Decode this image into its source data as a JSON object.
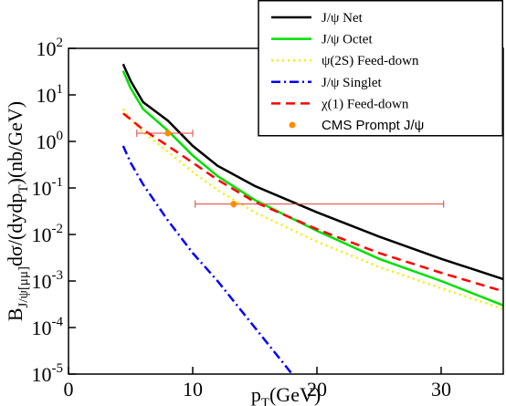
{
  "chart_data": {
    "type": "line",
    "xlabel_parts": [
      {
        "text": "p"
      },
      {
        "text": "T",
        "sub": true
      },
      {
        "text": "(GeV)"
      }
    ],
    "ylabel_parts": [
      {
        "text": "B"
      },
      {
        "text": "J/ψ[μμ]",
        "sub": true
      },
      {
        "text": "dσ/(dydp"
      },
      {
        "text": "T",
        "sub": true
      },
      {
        "text": ")(nb/GeV)"
      }
    ],
    "xlim": [
      0,
      35
    ],
    "xticks": [
      0,
      10,
      20,
      30
    ],
    "ylim": [
      1e-05,
      100
    ],
    "log_y": true,
    "yticks": [
      {
        "value": 1e-05,
        "label": "10",
        "exponent": "-5"
      },
      {
        "value": 0.0001,
        "label": "10",
        "exponent": "-4"
      },
      {
        "value": 0.001,
        "label": "10",
        "exponent": "-3"
      },
      {
        "value": 0.01,
        "label": "10",
        "exponent": "-2"
      },
      {
        "value": 0.1,
        "label": "10",
        "exponent": "-1"
      },
      {
        "value": 1,
        "label": "10",
        "exponent": "0"
      },
      {
        "value": 10,
        "label": "10",
        "exponent": "1"
      },
      {
        "value": 100,
        "label": "10",
        "exponent": "2"
      }
    ],
    "legend": "upper right",
    "series": [
      {
        "name": "J/ψ Net",
        "color": "#000000",
        "dash": "solid",
        "x": [
          4.4,
          5,
          6,
          8,
          10,
          12,
          15,
          20,
          25,
          30,
          35
        ],
        "values": [
          46,
          20,
          7,
          2.8,
          0.8,
          0.3,
          0.11,
          0.03,
          0.009,
          0.003,
          0.0011
        ]
      },
      {
        "name": "J/ψ Octet",
        "color": "#00e000",
        "dash": "solid",
        "x": [
          4.4,
          5,
          6,
          8,
          10,
          12,
          15,
          20,
          25,
          30,
          35
        ],
        "values": [
          33,
          14,
          5,
          1.7,
          0.5,
          0.18,
          0.055,
          0.012,
          0.003,
          0.001,
          0.0003
        ]
      },
      {
        "name": "ψ(2S) Feed-down",
        "color": "#f0f000",
        "dash": "dotted",
        "x": [
          4.4,
          5,
          6,
          8,
          10,
          12,
          15,
          20,
          25,
          30,
          35
        ],
        "values": [
          5,
          3,
          1.6,
          0.6,
          0.22,
          0.09,
          0.03,
          0.007,
          0.002,
          0.0007,
          0.00025
        ]
      },
      {
        "name": "J/ψ Singlet",
        "color": "#0000ff",
        "dash": "dashdot",
        "x": [
          4.4,
          5,
          6,
          8,
          10,
          12,
          15,
          18
        ],
        "values": [
          0.8,
          0.35,
          0.12,
          0.02,
          0.004,
          0.001,
          0.0001,
          1e-05
        ]
      },
      {
        "name": "χ(1) Feed-down",
        "color": "#ff0000",
        "dash": "dashed",
        "x": [
          4.4,
          5,
          6,
          8,
          10,
          12,
          15,
          20,
          25,
          30,
          35
        ],
        "values": [
          4,
          3,
          1.8,
          0.8,
          0.35,
          0.15,
          0.05,
          0.013,
          0.004,
          0.0015,
          0.0006
        ]
      },
      {
        "name": "CMS Prompt J/ψ",
        "type": "scatter",
        "color": "#ff8c00",
        "error_color": "#e04040",
        "x": [
          8,
          13.3
        ],
        "values": [
          1.5,
          0.045
        ],
        "xmin": [
          5.5,
          10.2
        ],
        "xmax": [
          10,
          30.2
        ],
        "ymin": [
          1.3,
          0.038
        ],
        "ymax": [
          1.75,
          0.052
        ]
      }
    ]
  }
}
